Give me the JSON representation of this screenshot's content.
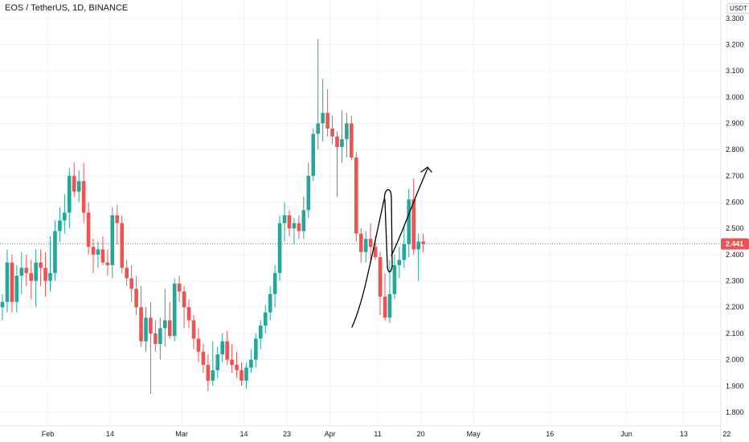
{
  "title": "EOS / TetherUS, 1D, BINANCE",
  "currency_badge": "USDT",
  "colors": {
    "up": "#26a69a",
    "down": "#ef5350",
    "grid": "#f0f3fa",
    "axis_text": "#131722",
    "price_line": "#ef5350",
    "drawing": "#000000"
  },
  "chart_data": {
    "type": "candlestick",
    "ylim": [
      1.76,
      3.33
    ],
    "y_ticks": [
      "3.300",
      "3.200",
      "3.100",
      "3.000",
      "2.900",
      "2.800",
      "2.700",
      "2.600",
      "2.500",
      "2.400",
      "2.300",
      "2.200",
      "2.100",
      "2.000",
      "1.900",
      "1.800"
    ],
    "x_labels": [
      {
        "label": "Feb",
        "index": 9.5
      },
      {
        "label": "14",
        "index": 22.5
      },
      {
        "label": "Mar",
        "index": 37.5
      },
      {
        "label": "14",
        "index": 50.5
      },
      {
        "label": "23",
        "index": 59.5
      },
      {
        "label": "Apr",
        "index": 68.5
      },
      {
        "label": "11",
        "index": 78.5
      },
      {
        "label": "20",
        "index": 87.5
      },
      {
        "label": "May",
        "index": 98.5
      },
      {
        "label": "16",
        "index": 114.5
      },
      {
        "label": "Jun",
        "index": 130.5
      },
      {
        "label": "13",
        "index": 142.5
      },
      {
        "label": "22",
        "index": 151.5
      }
    ],
    "candles": [
      [
        2.2,
        2.25,
        2.15,
        2.22
      ],
      [
        2.22,
        2.42,
        2.18,
        2.37
      ],
      [
        2.37,
        2.4,
        2.18,
        2.22
      ],
      [
        2.22,
        2.36,
        2.18,
        2.32
      ],
      [
        2.32,
        2.41,
        2.25,
        2.35
      ],
      [
        2.35,
        2.4,
        2.28,
        2.33
      ],
      [
        2.33,
        2.38,
        2.23,
        2.3
      ],
      [
        2.3,
        2.42,
        2.2,
        2.37
      ],
      [
        2.37,
        2.42,
        2.28,
        2.35
      ],
      [
        2.35,
        2.41,
        2.24,
        2.3
      ],
      [
        2.3,
        2.47,
        2.26,
        2.33
      ],
      [
        2.33,
        2.53,
        2.3,
        2.49
      ],
      [
        2.49,
        2.58,
        2.45,
        2.53
      ],
      [
        2.53,
        2.63,
        2.48,
        2.56
      ],
      [
        2.56,
        2.73,
        2.5,
        2.7
      ],
      [
        2.7,
        2.75,
        2.62,
        2.64
      ],
      [
        2.64,
        2.72,
        2.6,
        2.68
      ],
      [
        2.68,
        2.75,
        2.52,
        2.56
      ],
      [
        2.56,
        2.6,
        2.4,
        2.43
      ],
      [
        2.43,
        2.46,
        2.33,
        2.4
      ],
      [
        2.4,
        2.45,
        2.35,
        2.42
      ],
      [
        2.42,
        2.47,
        2.36,
        2.37
      ],
      [
        2.37,
        2.42,
        2.32,
        2.36
      ],
      [
        2.36,
        2.58,
        2.31,
        2.55
      ],
      [
        2.55,
        2.59,
        2.44,
        2.52
      ],
      [
        2.52,
        2.55,
        2.33,
        2.35
      ],
      [
        2.35,
        2.38,
        2.28,
        2.31
      ],
      [
        2.31,
        2.36,
        2.22,
        2.27
      ],
      [
        2.27,
        2.32,
        2.17,
        2.2
      ],
      [
        2.2,
        2.28,
        2.05,
        2.07
      ],
      [
        2.07,
        2.2,
        2.03,
        2.16
      ],
      [
        2.16,
        2.22,
        1.87,
        2.1
      ],
      [
        2.1,
        2.15,
        2.03,
        2.06
      ],
      [
        2.06,
        2.16,
        2.0,
        2.12
      ],
      [
        2.12,
        2.27,
        2.05,
        2.15
      ],
      [
        2.15,
        2.22,
        2.08,
        2.09
      ],
      [
        2.09,
        2.31,
        2.07,
        2.29
      ],
      [
        2.29,
        2.32,
        2.22,
        2.26
      ],
      [
        2.26,
        2.28,
        2.12,
        2.2
      ],
      [
        2.2,
        2.23,
        2.12,
        2.15
      ],
      [
        2.15,
        2.17,
        2.04,
        2.08
      ],
      [
        2.08,
        2.12,
        1.99,
        2.03
      ],
      [
        2.03,
        2.06,
        1.95,
        1.98
      ],
      [
        1.98,
        2.02,
        1.88,
        1.92
      ],
      [
        1.92,
        2.07,
        1.9,
        1.96
      ],
      [
        1.96,
        2.05,
        1.93,
        2.02
      ],
      [
        2.02,
        2.1,
        1.99,
        2.07
      ],
      [
        2.07,
        2.11,
        1.98,
        2.0
      ],
      [
        2.0,
        2.06,
        1.95,
        1.98
      ],
      [
        1.98,
        2.03,
        1.93,
        1.96
      ],
      [
        1.96,
        1.99,
        1.9,
        1.92
      ],
      [
        1.92,
        1.99,
        1.89,
        1.97
      ],
      [
        1.97,
        2.04,
        1.95,
        2.0
      ],
      [
        2.0,
        2.1,
        1.97,
        2.08
      ],
      [
        2.08,
        2.15,
        2.04,
        2.13
      ],
      [
        2.13,
        2.21,
        2.1,
        2.18
      ],
      [
        2.18,
        2.28,
        2.15,
        2.25
      ],
      [
        2.25,
        2.36,
        2.2,
        2.33
      ],
      [
        2.33,
        2.55,
        2.3,
        2.52
      ],
      [
        2.52,
        2.6,
        2.45,
        2.55
      ],
      [
        2.55,
        2.57,
        2.47,
        2.5
      ],
      [
        2.5,
        2.54,
        2.44,
        2.52
      ],
      [
        2.52,
        2.55,
        2.46,
        2.49
      ],
      [
        2.49,
        2.62,
        2.46,
        2.57
      ],
      [
        2.57,
        2.75,
        2.54,
        2.7
      ],
      [
        2.7,
        2.88,
        2.68,
        2.86
      ],
      [
        2.86,
        3.22,
        2.8,
        2.9
      ],
      [
        2.9,
        3.07,
        2.83,
        2.94
      ],
      [
        2.94,
        3.03,
        2.85,
        2.88
      ],
      [
        2.88,
        2.93,
        2.82,
        2.85
      ],
      [
        2.85,
        2.87,
        2.62,
        2.81
      ],
      [
        2.81,
        2.95,
        2.75,
        2.84
      ],
      [
        2.84,
        2.94,
        2.77,
        2.9
      ],
      [
        2.9,
        2.93,
        2.76,
        2.77
      ],
      [
        2.77,
        2.79,
        2.45,
        2.48
      ],
      [
        2.48,
        2.5,
        2.37,
        2.41
      ],
      [
        2.41,
        2.49,
        2.37,
        2.46
      ],
      [
        2.46,
        2.52,
        2.37,
        2.43
      ],
      [
        2.43,
        2.47,
        2.38,
        2.39
      ],
      [
        2.39,
        2.41,
        2.17,
        2.24
      ],
      [
        2.24,
        2.33,
        2.15,
        2.16
      ],
      [
        2.16,
        2.38,
        2.14,
        2.25
      ],
      [
        2.25,
        2.4,
        2.23,
        2.36
      ],
      [
        2.36,
        2.43,
        2.31,
        2.38
      ],
      [
        2.38,
        2.51,
        2.35,
        2.44
      ],
      [
        2.44,
        2.65,
        2.39,
        2.61
      ],
      [
        2.61,
        2.69,
        2.4,
        2.42
      ],
      [
        2.42,
        2.48,
        2.3,
        2.45
      ],
      [
        2.45,
        2.48,
        2.41,
        2.441
      ]
    ],
    "last_price": "2.441"
  }
}
